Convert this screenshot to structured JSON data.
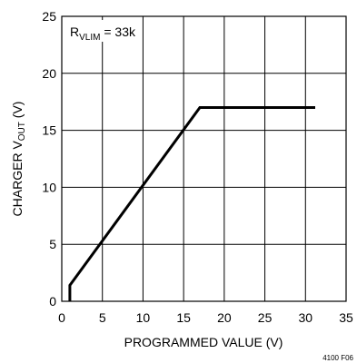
{
  "chart_data": {
    "type": "line",
    "xlabel": "PROGRAMMED VALUE (V)",
    "ylabel": {
      "prefix": "CHARGER V",
      "sub": "OUT",
      "suffix": " (V)"
    },
    "xlim": [
      0,
      35
    ],
    "ylim": [
      0,
      25
    ],
    "xticks": [
      0,
      5,
      10,
      15,
      20,
      25,
      30,
      35
    ],
    "yticks": [
      0,
      5,
      10,
      15,
      20,
      25
    ],
    "grid": true,
    "series": [
      {
        "x": [
          1,
          1,
          17,
          31.2
        ],
        "y": [
          0,
          1.4,
          17,
          17
        ]
      }
    ],
    "annotation": {
      "prefix": "R",
      "sub": "VLIM",
      "suffix": " = 33k"
    }
  },
  "figure_id": "4100 F06"
}
